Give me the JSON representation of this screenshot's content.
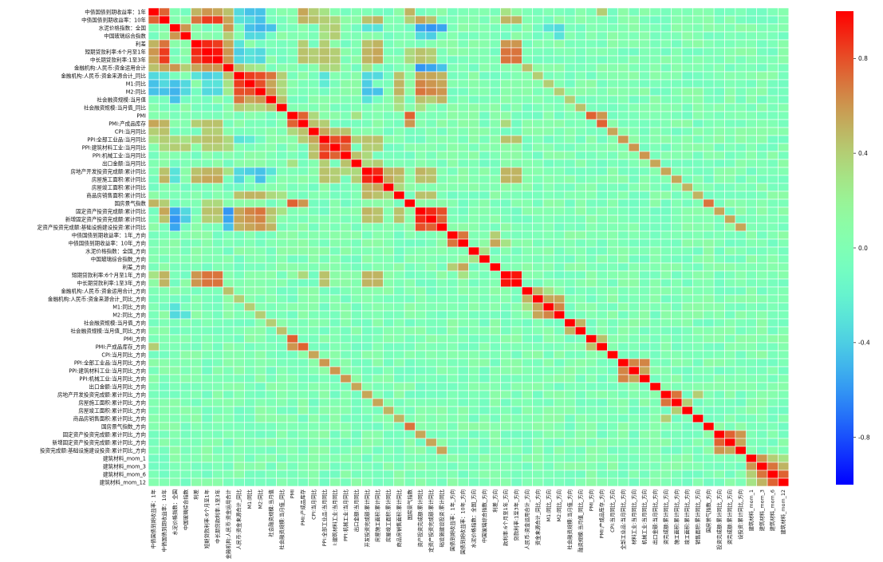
{
  "chart_data": {
    "type": "heatmap",
    "title": "",
    "xlabel": "",
    "ylabel": "",
    "labels": [
      "中债国债到期收益率：1年",
      "中债国债到期收益率：10年",
      "水泥价格指数：全国",
      "中国玻璃综合指数",
      "利差",
      "短期贷款利率:6个月至1年",
      "中长期贷款利率:1至3年",
      "金融机构:人民币:资金运用合计",
      "金融机构:人民币:资金来源合计_同比",
      "M1:同比",
      "M2:同比",
      "社会融资规模:当月值",
      "社会融资规模:当月值_同比",
      "PMI",
      "PMI:产成品库存",
      "CPI:当月同比",
      "PPI:全部工业品:当月同比",
      "PPI:建筑材料工业:当月同比",
      "PPI:机械工业:当月同比",
      "出口金额:当月同比",
      "房地产开发投资完成额:累计同比",
      "房屋施工面积:累计同比",
      "房屋竣工面积:累计同比",
      "商品房销售面积:累计同比",
      "国房景气指数",
      "固定资产投资完成额:累计同比",
      "新增固定资产投资完成额:累计同比",
      "固定资产投资完成额:基础设施建设投资:累计同比",
      "中债国债到期收益率：1年_方向",
      "中债国债到期收益率：10年_方向",
      "水泥价格指数：全国_方向",
      "中国玻璃综合指数_方向",
      "利差_方向",
      "短期贷款利率:6个月至1年_方向",
      "中长期贷款利率:1至3年_方向",
      "金融机构:人民币:资金运用合计_方向",
      "金融机构:人民币:资金来源合计_同比_方向",
      "M1:同比_方向",
      "M2:同比_方向",
      "社会融资规模:当月值_方向",
      "社会融资规模:当月值_同比_方向",
      "PMI_方向",
      "PMI:产成品库存_方向",
      "CPI:当月同比_方向",
      "PPI:全部工业品:当月同比_方向",
      "PPI:建筑材料工业:当月同比_方向",
      "PPI:机械工业:当月同比_方向",
      "出口金额:当月同比_方向",
      "房地产开发投资完成额:累计同比_方向",
      "房屋施工面积:累计同比_方向",
      "房屋竣工面积:累计同比_方向",
      "商品房销售面积:累计同比_方向",
      "国房景气指数_方向",
      "固定资产投资完成额:累计同比_方向",
      "新增固定资产投资完成额:累计同比_方向",
      "固定资产投资完成额:基础设施建设投资:累计同比_方向",
      "建筑材料_mom_1",
      "建筑材料_mom_3",
      "建筑材料_mom_6",
      "建筑材料_mom_12"
    ],
    "row_labels_display": [
      "中债国债到期收益率：1年",
      "中债国债到期收益率：10年",
      "水泥价格指数：全国",
      "中国玻璃综合指数",
      "利差",
      "短期贷款利率:6个月至1年",
      "中长期贷款利率:1至3年",
      "金融机构:人民币:资金运用合计",
      "金融机构:人民币:资金来源合计_同比",
      "M1:同比",
      "M2:同比",
      "社会融资规模:当月值",
      "社会融资规模:当月值_同比",
      "PMI",
      "PMI:产成品库存",
      "CPI:当月同比",
      "PPI:全部工业品:当月同比",
      "PPI:建筑材料工业:当月同比",
      "PPI:机械工业:当月同比",
      "出口金额:当月同比",
      "房地产开发投资完成额:累计同比",
      "房屋施工面积:累计同比",
      "房屋竣工面积:累计同比",
      "商品房销售面积:累计同比",
      "国房景气指数",
      "固定资产投资完成额:累计同比",
      "新增固定资产投资完成额:累计同比",
      "定资产投资完成额:基础设施建设投资:累计同比",
      "中债国债到期收益率：1年_方向",
      "中债国债到期收益率：10年_方向",
      "水泥价格指数：全国_方向",
      "中国玻璃综合指数_方向",
      "利差_方向",
      "短期贷款利率:6个月至1年_方向",
      "中长期贷款利率:1至3年_方向",
      "金融机构:人民币:资金运用合计_方向",
      "金融机构:人民币:资金来源合计_同比_方向",
      "M1:同比_方向",
      "M2:同比_方向",
      "社会融资规模:当月值_方向",
      "社会融资规模:当月值_同比_方向",
      "PMI_方向",
      "PMI:产成品库存_方向",
      "CPI:当月同比_方向",
      "PPI:全部工业品:当月同比_方向",
      "PPI:建筑材料工业:当月同比_方向",
      "PPI:机械工业:当月同比_方向",
      "出口金额:当月同比_方向",
      "房地产开发投资完成额:累计同比_方向",
      "房屋施工面积:累计同比_方向",
      "房屋竣工面积:累计同比_方向",
      "商品房销售面积:累计同比_方向",
      "国房景气指数_方向",
      "固定资产投资完成额:累计同比_方向",
      "新增固定资产投资完成额:累计同比_方向",
      "投资完成额:基础设施建设投资:累计同比_方向",
      "建筑材料_mom_1",
      "建筑材料_mom_3",
      "建筑材料_mom_6",
      "建筑材料_mom_12"
    ],
    "col_labels_display": [
      "中债国债到期收益率：1年",
      "中债国债到期收益率：10年",
      "水泥价格指数：全国",
      "中国玻璃综合指数",
      "利差",
      "短期贷款利率:6个月至1年",
      "中长期贷款利率:1至3年",
      "金融机构:人民币:资金运用合计",
      "人民币:资金来源合计_同比",
      "M1:同比",
      "M2:同比",
      "社会融资规模:当月值",
      "社会融资规模:当月值_同比",
      "PMI",
      "PMI:产成品库存",
      "CPI:当月同比",
      "PPI:全部工业品:当月同比",
      "I:建筑材料工业:当月同比",
      "PPI:机械工业:当月同比",
      "出口金额:当月同比",
      "开发投资完成额:累计同比",
      "房屋施工面积:累计同比",
      "房屋竣工面积:累计同比",
      "商品房销售面积:累计同比",
      "国房景气指数",
      "资产投资完成额:累计同比",
      "定资产投资完成额:累计同比",
      "础设施建设投资:累计同比",
      "国债到期收益率：1年_方向",
      "国债到期收益率：10年_方向",
      "水泥价格指数：全国_方向",
      "中国玻璃综合指数_方向",
      "利差_方向",
      "款利率:6个月至1年_方向",
      "贷款利率:1至3年_方向",
      "人民币:资金运用合计_方向",
      "资金来源合计_同比_方向",
      "M1:同比_方向",
      "M2:同比_方向",
      "社会融资规模:当月值_方向",
      "融资规模:当月值_同比_方向",
      "PMI_方向",
      "PMI:产成品库存_方向",
      "CPI:当月同比_方向",
      "全部工业品:当月同比_方向",
      "材料工业:当月同比_方向",
      "机械工业:当月同比_方向",
      "出口金额:当月同比_方向",
      "资完成额:累计同比_方向",
      "施工面积:累计同比_方向",
      "竣工面积:累计同比_方向",
      "销售面积:累计同比_方向",
      "国房景气指数_方向",
      "投资完成额:累计同比_方向",
      "资完成额:累计同比_方向",
      "设投资:累计同比_方向",
      "建筑材料_mom_1",
      "建筑材料_mom_3",
      "建筑材料_mom_6",
      "建筑材料_mom_12"
    ],
    "vmin": -1.0,
    "vmax": 1.0,
    "colormap": "rainbow",
    "colorbar_ticks": [
      0.8,
      0.4,
      0.0,
      -0.4,
      -0.8
    ],
    "colorbar_tick_labels": [
      "0.8",
      "0.4",
      "0.0",
      "-0.4",
      "-0.8"
    ],
    "grid": true,
    "diagonal": 1.0,
    "values_note": "Symmetric correlation matrix; lower triangle mirrors upper triangle. Unlisted pairs are approximately 0.0 (greenish).",
    "correlations": [
      [
        0,
        1,
        0.75
      ],
      [
        0,
        4,
        0.5
      ],
      [
        0,
        5,
        0.6
      ],
      [
        0,
        6,
        0.55
      ],
      [
        0,
        7,
        0.45
      ],
      [
        0,
        8,
        -0.35
      ],
      [
        0,
        9,
        -0.45
      ],
      [
        0,
        10,
        -0.45
      ],
      [
        0,
        14,
        0.55
      ],
      [
        0,
        15,
        0.4
      ],
      [
        0,
        16,
        0.3
      ],
      [
        0,
        24,
        0.5
      ],
      [
        0,
        33,
        0.3
      ],
      [
        0,
        42,
        0.4
      ],
      [
        1,
        4,
        0.7
      ],
      [
        1,
        5,
        0.85
      ],
      [
        1,
        6,
        0.85
      ],
      [
        1,
        7,
        0.55
      ],
      [
        1,
        8,
        -0.3
      ],
      [
        1,
        9,
        -0.35
      ],
      [
        1,
        10,
        -0.45
      ],
      [
        1,
        14,
        0.5
      ],
      [
        1,
        15,
        0.45
      ],
      [
        1,
        16,
        0.4
      ],
      [
        1,
        17,
        0.35
      ],
      [
        1,
        20,
        0.45
      ],
      [
        1,
        21,
        0.5
      ],
      [
        1,
        24,
        0.4
      ],
      [
        1,
        25,
        0.55
      ],
      [
        1,
        26,
        0.45
      ],
      [
        1,
        33,
        0.5
      ],
      [
        1,
        34,
        0.5
      ],
      [
        2,
        3,
        0.6
      ],
      [
        2,
        7,
        0.6
      ],
      [
        2,
        9,
        -0.45
      ],
      [
        2,
        10,
        -0.5
      ],
      [
        2,
        11,
        -0.45
      ],
      [
        2,
        16,
        0.35
      ],
      [
        2,
        17,
        0.4
      ],
      [
        2,
        20,
        -0.3
      ],
      [
        2,
        21,
        -0.3
      ],
      [
        2,
        25,
        -0.55
      ],
      [
        2,
        26,
        -0.6
      ],
      [
        2,
        27,
        -0.55
      ],
      [
        2,
        37,
        -0.3
      ],
      [
        2,
        38,
        -0.35
      ],
      [
        3,
        7,
        0.4
      ],
      [
        3,
        9,
        -0.35
      ],
      [
        3,
        10,
        -0.35
      ],
      [
        3,
        16,
        0.3
      ],
      [
        3,
        17,
        0.4
      ],
      [
        3,
        25,
        -0.35
      ],
      [
        3,
        26,
        -0.4
      ],
      [
        3,
        38,
        -0.3
      ],
      [
        4,
        5,
        0.9
      ],
      [
        4,
        6,
        0.85
      ],
      [
        4,
        7,
        0.55
      ],
      [
        4,
        8,
        -0.3
      ],
      [
        4,
        14,
        0.4
      ],
      [
        4,
        16,
        0.4
      ],
      [
        4,
        20,
        0.45
      ],
      [
        4,
        21,
        0.5
      ],
      [
        4,
        33,
        0.6
      ],
      [
        4,
        34,
        0.6
      ],
      [
        5,
        6,
        0.95
      ],
      [
        5,
        7,
        0.6
      ],
      [
        5,
        8,
        -0.4
      ],
      [
        5,
        9,
        -0.3
      ],
      [
        5,
        10,
        -0.35
      ],
      [
        5,
        14,
        0.45
      ],
      [
        5,
        15,
        0.4
      ],
      [
        5,
        16,
        0.45
      ],
      [
        5,
        17,
        0.4
      ],
      [
        5,
        20,
        0.5
      ],
      [
        5,
        21,
        0.55
      ],
      [
        5,
        24,
        0.35
      ],
      [
        5,
        25,
        0.45
      ],
      [
        5,
        26,
        0.4
      ],
      [
        5,
        33,
        0.7
      ],
      [
        5,
        34,
        0.7
      ],
      [
        6,
        7,
        0.6
      ],
      [
        6,
        8,
        -0.35
      ],
      [
        6,
        9,
        -0.3
      ],
      [
        6,
        10,
        -0.35
      ],
      [
        6,
        14,
        0.45
      ],
      [
        6,
        15,
        0.4
      ],
      [
        6,
        16,
        0.45
      ],
      [
        6,
        17,
        0.4
      ],
      [
        6,
        20,
        0.5
      ],
      [
        6,
        21,
        0.55
      ],
      [
        6,
        24,
        0.35
      ],
      [
        6,
        25,
        0.45
      ],
      [
        6,
        26,
        0.4
      ],
      [
        6,
        33,
        0.7
      ],
      [
        6,
        34,
        0.7
      ],
      [
        7,
        8,
        0.45
      ],
      [
        7,
        9,
        0.3
      ],
      [
        7,
        10,
        0.25
      ],
      [
        7,
        16,
        0.35
      ],
      [
        7,
        17,
        0.35
      ],
      [
        7,
        20,
        0.3
      ],
      [
        7,
        25,
        -0.6
      ],
      [
        7,
        26,
        -0.55
      ],
      [
        7,
        27,
        -0.45
      ],
      [
        7,
        35,
        0.45
      ],
      [
        8,
        9,
        0.85
      ],
      [
        8,
        10,
        0.8
      ],
      [
        8,
        11,
        0.7
      ],
      [
        8,
        12,
        0.4
      ],
      [
        8,
        16,
        -0.3
      ],
      [
        8,
        20,
        -0.35
      ],
      [
        8,
        21,
        -0.35
      ],
      [
        8,
        23,
        0.45
      ],
      [
        8,
        25,
        0.55
      ],
      [
        8,
        26,
        0.55
      ],
      [
        8,
        27,
        0.5
      ],
      [
        8,
        36,
        0.4
      ],
      [
        9,
        10,
        0.8
      ],
      [
        9,
        11,
        0.55
      ],
      [
        9,
        12,
        0.35
      ],
      [
        9,
        16,
        -0.25
      ],
      [
        9,
        20,
        -0.4
      ],
      [
        9,
        23,
        0.5
      ],
      [
        9,
        25,
        0.65
      ],
      [
        9,
        26,
        0.6
      ],
      [
        9,
        27,
        0.55
      ],
      [
        9,
        37,
        0.4
      ],
      [
        10,
        11,
        0.6
      ],
      [
        10,
        12,
        0.35
      ],
      [
        10,
        20,
        -0.45
      ],
      [
        10,
        21,
        -0.45
      ],
      [
        10,
        23,
        0.5
      ],
      [
        10,
        25,
        0.7
      ],
      [
        10,
        26,
        0.65
      ],
      [
        10,
        27,
        0.6
      ],
      [
        10,
        38,
        0.4
      ],
      [
        11,
        12,
        0.45
      ],
      [
        11,
        20,
        -0.3
      ],
      [
        11,
        23,
        0.35
      ],
      [
        11,
        25,
        0.45
      ],
      [
        11,
        26,
        0.4
      ],
      [
        11,
        27,
        0.5
      ],
      [
        11,
        39,
        0.4
      ],
      [
        12,
        23,
        0.3
      ],
      [
        12,
        25,
        0.3
      ],
      [
        12,
        40,
        0.45
      ],
      [
        13,
        14,
        0.75
      ],
      [
        13,
        15,
        0.35
      ],
      [
        13,
        19,
        0.3
      ],
      [
        13,
        24,
        0.75
      ],
      [
        13,
        41,
        0.75
      ],
      [
        13,
        42,
        0.6
      ],
      [
        14,
        15,
        0.45
      ],
      [
        14,
        16,
        0.4
      ],
      [
        14,
        24,
        0.6
      ],
      [
        14,
        42,
        0.75
      ],
      [
        14,
        33,
        0.35
      ],
      [
        15,
        16,
        0.55
      ],
      [
        15,
        17,
        0.45
      ],
      [
        15,
        18,
        0.45
      ],
      [
        15,
        43,
        0.55
      ],
      [
        16,
        17,
        0.8
      ],
      [
        16,
        18,
        0.85
      ],
      [
        16,
        19,
        0.4
      ],
      [
        16,
        20,
        0.45
      ],
      [
        16,
        21,
        0.45
      ],
      [
        16,
        33,
        0.45
      ],
      [
        16,
        34,
        0.45
      ],
      [
        16,
        44,
        0.6
      ],
      [
        17,
        18,
        0.75
      ],
      [
        17,
        20,
        0.4
      ],
      [
        17,
        21,
        0.4
      ],
      [
        17,
        45,
        0.6
      ],
      [
        18,
        19,
        0.45
      ],
      [
        18,
        20,
        0.35
      ],
      [
        18,
        46,
        0.6
      ],
      [
        19,
        20,
        0.35
      ],
      [
        19,
        21,
        0.4
      ],
      [
        19,
        47,
        0.55
      ],
      [
        20,
        21,
        0.9
      ],
      [
        20,
        22,
        0.5
      ],
      [
        20,
        23,
        0.5
      ],
      [
        20,
        25,
        0.5
      ],
      [
        20,
        26,
        0.45
      ],
      [
        20,
        33,
        0.5
      ],
      [
        20,
        34,
        0.5
      ],
      [
        20,
        48,
        0.55
      ],
      [
        21,
        22,
        0.55
      ],
      [
        21,
        23,
        0.45
      ],
      [
        21,
        25,
        0.45
      ],
      [
        21,
        26,
        0.45
      ],
      [
        21,
        33,
        0.5
      ],
      [
        21,
        34,
        0.5
      ],
      [
        21,
        49,
        0.55
      ],
      [
        22,
        23,
        0.35
      ],
      [
        22,
        50,
        0.5
      ],
      [
        23,
        25,
        0.45
      ],
      [
        23,
        26,
        0.45
      ],
      [
        23,
        51,
        0.5
      ],
      [
        24,
        52,
        0.7
      ],
      [
        25,
        26,
        0.9
      ],
      [
        25,
        27,
        0.8
      ],
      [
        25,
        53,
        0.55
      ],
      [
        26,
        27,
        0.75
      ],
      [
        26,
        54,
        0.55
      ],
      [
        27,
        55,
        0.55
      ],
      [
        28,
        29,
        0.7
      ],
      [
        28,
        32,
        0.4
      ],
      [
        29,
        32,
        0.55
      ],
      [
        29,
        33,
        0.3
      ],
      [
        30,
        31,
        0.3
      ],
      [
        33,
        34,
        0.95
      ],
      [
        35,
        36,
        0.5
      ],
      [
        35,
        37,
        0.3
      ],
      [
        36,
        37,
        0.55
      ],
      [
        36,
        38,
        0.55
      ],
      [
        37,
        38,
        0.65
      ],
      [
        39,
        40,
        0.5
      ],
      [
        41,
        42,
        0.45
      ],
      [
        44,
        45,
        0.65
      ],
      [
        44,
        46,
        0.65
      ],
      [
        45,
        46,
        0.55
      ],
      [
        48,
        49,
        0.7
      ],
      [
        48,
        51,
        0.4
      ],
      [
        49,
        50,
        0.4
      ],
      [
        53,
        54,
        0.75
      ],
      [
        53,
        55,
        0.6
      ],
      [
        54,
        55,
        0.55
      ],
      [
        56,
        57,
        0.6
      ],
      [
        56,
        58,
        0.4
      ],
      [
        56,
        59,
        0.3
      ],
      [
        57,
        58,
        0.7
      ],
      [
        57,
        59,
        0.5
      ],
      [
        58,
        59,
        0.75
      ]
    ]
  }
}
